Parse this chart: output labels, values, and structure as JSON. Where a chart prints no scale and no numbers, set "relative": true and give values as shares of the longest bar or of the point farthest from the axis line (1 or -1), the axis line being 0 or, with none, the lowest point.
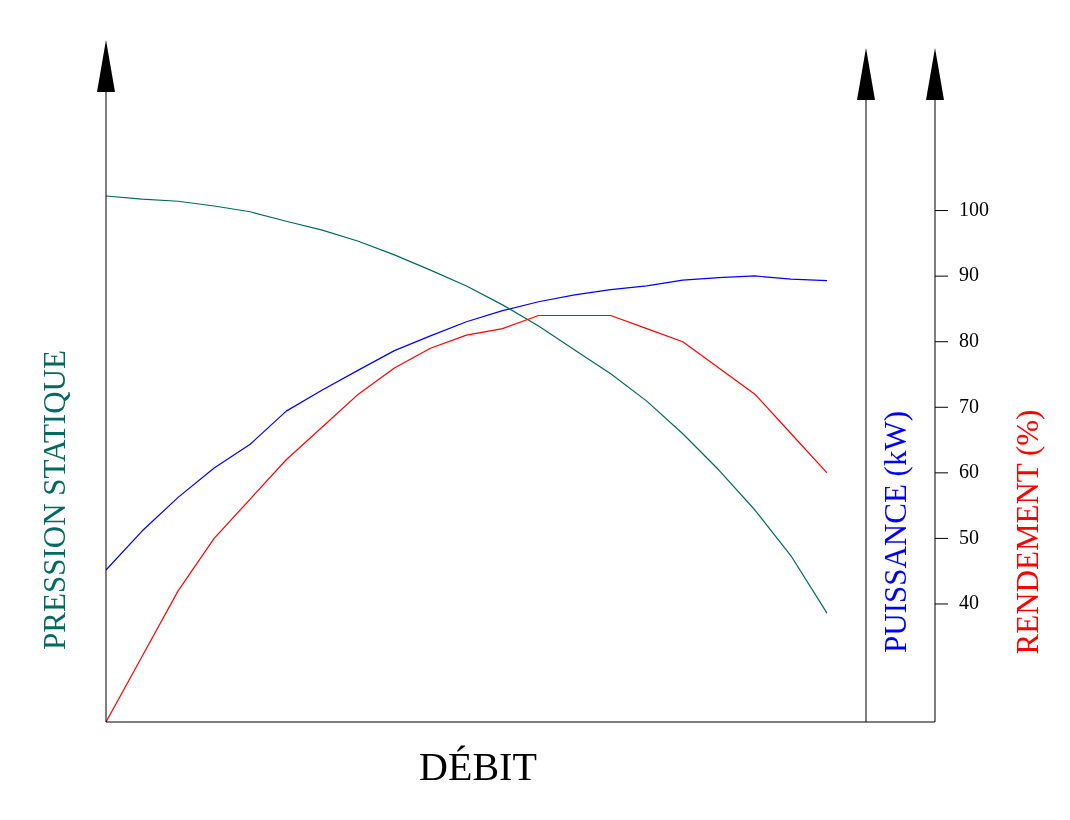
{
  "chart_data": [
    {
      "type": "line",
      "xlabel": "DÉBIT",
      "ylabel": "RENDEMENT (%)",
      "categories": [
        null,
        null,
        null,
        null,
        null,
        null,
        null,
        null,
        null,
        null,
        null,
        null,
        null,
        null,
        null,
        null,
        null,
        null,
        null,
        null,
        null
      ],
      "ylim": [
        22,
        119
      ],
      "yticks": [
        40,
        50,
        60,
        70,
        80,
        90,
        100
      ],
      "tick_labels": "y",
      "legend": false,
      "marker": "none",
      "series": [
        {
          "color": "#ff0000",
          "values": [
            22,
            32,
            42,
            50,
            56,
            62,
            67,
            72,
            76,
            79,
            81,
            82,
            84,
            84,
            84,
            82,
            80,
            76,
            72,
            66,
            60
          ]
        }
      ]
    },
    {
      "type": "line",
      "ylabel": "PRESSION STATIQUE",
      "y3label": "PUISSANCE (kW)",
      "categories": [
        null,
        null,
        null,
        null,
        null,
        null,
        null,
        null,
        null,
        null,
        null,
        null,
        null,
        null,
        null,
        null,
        null,
        null,
        null,
        null,
        null
      ],
      "relative": true,
      "tick_labels": false,
      "legend": false,
      "marker": "none",
      "series": [
        {
          "color": "#006b5e",
          "values": [
            1.0,
            0.994,
            0.99,
            0.981,
            0.97,
            0.952,
            0.935,
            0.914,
            0.888,
            0.859,
            0.829,
            0.793,
            0.753,
            0.707,
            0.662,
            0.61,
            0.548,
            0.479,
            0.403,
            0.316,
            0.207
          ]
        },
        {
          "color": "#0000ff",
          "values": [
            0.289,
            0.363,
            0.427,
            0.483,
            0.528,
            0.591,
            0.631,
            0.669,
            0.706,
            0.734,
            0.761,
            0.782,
            0.799,
            0.812,
            0.822,
            0.829,
            0.84,
            0.845,
            0.848,
            0.842,
            0.839
          ]
        }
      ]
    }
  ]
}
